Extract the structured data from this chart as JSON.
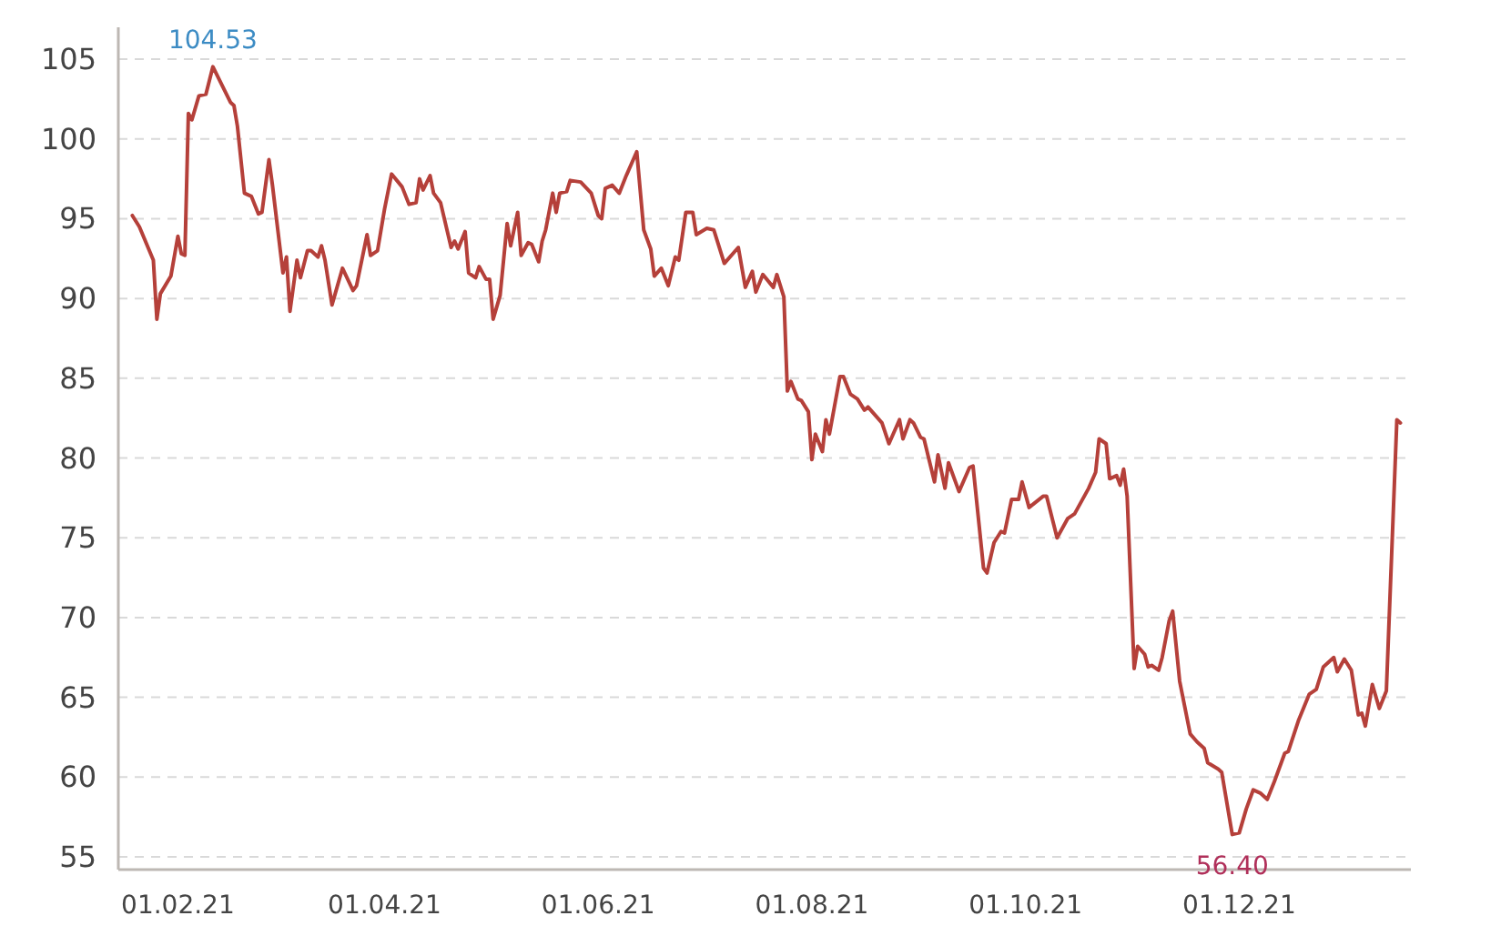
{
  "chart_data": {
    "type": "line",
    "x": [
      "2021-01-19",
      "2021-01-21",
      "2021-01-25",
      "2021-01-26",
      "2021-01-27",
      "2021-01-30",
      "2021-02-01",
      "2021-02-02",
      "2021-02-03",
      "2021-02-04",
      "2021-02-05",
      "2021-02-07",
      "2021-02-09",
      "2021-02-11",
      "2021-02-16",
      "2021-02-17",
      "2021-02-18",
      "2021-02-20",
      "2021-02-22",
      "2021-02-24",
      "2021-02-25",
      "2021-02-27",
      "2021-02-28",
      "2021-03-03",
      "2021-03-04",
      "2021-03-05",
      "2021-03-07",
      "2021-03-08",
      "2021-03-10",
      "2021-03-11",
      "2021-03-13",
      "2021-03-14",
      "2021-03-15",
      "2021-03-17",
      "2021-03-20",
      "2021-03-23",
      "2021-03-24",
      "2021-03-27",
      "2021-03-28",
      "2021-03-30",
      "2021-04-01",
      "2021-04-03",
      "2021-04-06",
      "2021-04-08",
      "2021-04-10",
      "2021-04-11",
      "2021-04-12",
      "2021-04-14",
      "2021-04-15",
      "2021-04-17",
      "2021-04-20",
      "2021-04-21",
      "2021-04-22",
      "2021-04-24",
      "2021-04-25",
      "2021-04-27",
      "2021-04-28",
      "2021-04-30",
      "2021-05-01",
      "2021-05-02",
      "2021-05-04",
      "2021-05-06",
      "2021-05-07",
      "2021-05-09",
      "2021-05-10",
      "2021-05-12",
      "2021-05-13",
      "2021-05-15",
      "2021-05-16",
      "2021-05-17",
      "2021-05-19",
      "2021-05-20",
      "2021-05-21",
      "2021-05-23",
      "2021-05-24",
      "2021-05-27",
      "2021-05-30",
      "2021-06-01",
      "2021-06-02",
      "2021-06-03",
      "2021-06-05",
      "2021-06-07",
      "2021-06-09",
      "2021-06-12",
      "2021-06-14",
      "2021-06-16",
      "2021-06-17",
      "2021-06-19",
      "2021-06-21",
      "2021-06-23",
      "2021-06-24",
      "2021-06-26",
      "2021-06-28",
      "2021-06-29",
      "2021-07-02",
      "2021-07-04",
      "2021-07-07",
      "2021-07-11",
      "2021-07-13",
      "2021-07-15",
      "2021-07-16",
      "2021-07-18",
      "2021-07-21",
      "2021-07-22",
      "2021-07-24",
      "2021-07-25",
      "2021-07-26",
      "2021-07-28",
      "2021-07-29",
      "2021-07-31",
      "2021-08-01",
      "2021-08-02",
      "2021-08-04",
      "2021-08-05",
      "2021-08-06",
      "2021-08-09",
      "2021-08-10",
      "2021-08-12",
      "2021-08-14",
      "2021-08-16",
      "2021-08-17",
      "2021-08-21",
      "2021-08-23",
      "2021-08-26",
      "2021-08-27",
      "2021-08-29",
      "2021-08-30",
      "2021-09-01",
      "2021-09-02",
      "2021-09-05",
      "2021-09-06",
      "2021-09-08",
      "2021-09-09",
      "2021-09-12",
      "2021-09-15",
      "2021-09-16",
      "2021-09-19",
      "2021-09-20",
      "2021-09-22",
      "2021-09-24",
      "2021-09-25",
      "2021-09-27",
      "2021-09-29",
      "2021-09-30",
      "2021-10-02",
      "2021-10-06",
      "2021-10-07",
      "2021-10-10",
      "2021-10-13",
      "2021-10-15",
      "2021-10-19",
      "2021-10-21",
      "2021-10-22",
      "2021-10-24",
      "2021-10-25",
      "2021-10-27",
      "2021-10-28",
      "2021-10-29",
      "2021-10-30",
      "2021-11-01",
      "2021-11-02",
      "2021-11-04",
      "2021-11-05",
      "2021-11-06",
      "2021-11-08",
      "2021-11-09",
      "2021-11-11",
      "2021-11-12",
      "2021-11-14",
      "2021-11-17",
      "2021-11-19",
      "2021-11-21",
      "2021-11-22",
      "2021-11-25",
      "2021-11-26",
      "2021-11-29",
      "2021-12-01",
      "2021-12-03",
      "2021-12-05",
      "2021-12-07",
      "2021-12-09",
      "2021-12-11",
      "2021-12-14",
      "2021-12-15",
      "2021-12-18",
      "2021-12-21",
      "2021-12-23",
      "2021-12-25",
      "2021-12-28",
      "2021-12-29",
      "2021-12-31",
      "2022-01-02",
      "2022-01-04",
      "2022-01-05",
      "2022-01-06",
      "2022-01-08",
      "2022-01-10",
      "2022-01-12",
      "2022-01-15",
      "2022-01-16"
    ],
    "series": [
      {
        "color": "#b5403a",
        "values": [
          95.2,
          94.5,
          92.4,
          88.7,
          90.3,
          91.4,
          93.9,
          92.8,
          92.7,
          101.6,
          101.2,
          102.7,
          102.8,
          104.53,
          102.3,
          102.1,
          100.8,
          96.6,
          96.4,
          95.3,
          95.4,
          98.7,
          97.1,
          91.6,
          92.6,
          89.2,
          92.4,
          91.3,
          93.0,
          93.0,
          92.6,
          93.3,
          92.4,
          89.6,
          91.9,
          90.5,
          90.8,
          94.0,
          92.7,
          93.0,
          95.6,
          97.8,
          97.0,
          95.9,
          96.0,
          97.5,
          96.8,
          97.7,
          96.6,
          96.0,
          93.2,
          93.6,
          93.1,
          94.2,
          91.6,
          91.3,
          92.0,
          91.2,
          91.2,
          88.7,
          90.2,
          94.7,
          93.3,
          95.4,
          92.7,
          93.5,
          93.4,
          92.3,
          93.6,
          94.3,
          96.6,
          95.4,
          96.6,
          96.7,
          97.4,
          97.3,
          96.6,
          95.2,
          95.0,
          96.9,
          97.1,
          96.6,
          97.7,
          99.2,
          94.3,
          93.1,
          91.4,
          91.9,
          90.8,
          92.6,
          92.4,
          95.4,
          95.4,
          94.0,
          94.4,
          94.3,
          92.2,
          93.2,
          90.7,
          91.7,
          90.4,
          91.5,
          90.7,
          91.5,
          90.1,
          84.2,
          84.8,
          83.7,
          83.6,
          82.9,
          79.9,
          81.5,
          80.4,
          82.4,
          81.5,
          85.1,
          85.1,
          84.0,
          83.7,
          83.0,
          83.2,
          82.2,
          80.9,
          82.4,
          81.2,
          82.4,
          82.2,
          81.3,
          81.2,
          78.5,
          80.2,
          78.1,
          79.7,
          77.9,
          79.4,
          79.5,
          73.1,
          72.8,
          74.7,
          75.4,
          75.3,
          77.4,
          77.4,
          78.5,
          76.9,
          77.6,
          77.6,
          75.0,
          76.2,
          76.5,
          78.1,
          79.1,
          81.2,
          80.9,
          78.7,
          78.9,
          78.3,
          79.3,
          77.6,
          66.8,
          68.2,
          67.7,
          66.9,
          67.0,
          66.7,
          67.5,
          69.8,
          70.4,
          66.0,
          62.7,
          62.2,
          61.8,
          60.9,
          60.5,
          60.3,
          56.4,
          56.5,
          58.0,
          59.2,
          59.0,
          58.6,
          59.7,
          61.5,
          61.6,
          63.6,
          65.2,
          65.5,
          66.9,
          67.5,
          66.6,
          67.4,
          66.7,
          63.9,
          64.0,
          63.2,
          65.8,
          64.3,
          65.4,
          82.4,
          82.2
        ]
      }
    ],
    "xlim": [
      "2021-01-15",
      "2022-01-19"
    ],
    "xticks": [
      {
        "value": "2021-02-01",
        "label": "01.02.21"
      },
      {
        "value": "2021-04-01",
        "label": "01.04.21"
      },
      {
        "value": "2021-06-01",
        "label": "01.06.21"
      },
      {
        "value": "2021-08-01",
        "label": "01.08.21"
      },
      {
        "value": "2021-10-01",
        "label": "01.10.21"
      },
      {
        "value": "2021-12-01",
        "label": "01.12.21"
      }
    ],
    "ylim": [
      54.2,
      107
    ],
    "yticks": [
      55,
      60,
      65,
      70,
      75,
      80,
      85,
      90,
      95,
      100,
      105
    ],
    "grid": "y",
    "annotations": [
      {
        "text": "104.53",
        "x": "2021-02-11",
        "y": 104.53
      },
      {
        "text": "56.40",
        "x": "2021-11-29",
        "y": 56.4
      }
    ]
  }
}
